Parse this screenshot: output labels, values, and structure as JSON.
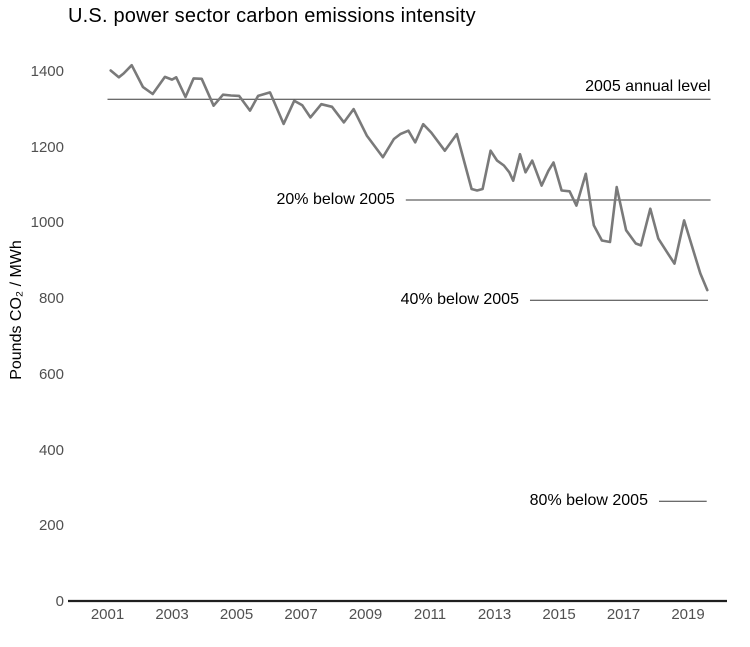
{
  "colors": {
    "background": "#ffffff",
    "text": "#000000",
    "tick_label": "#505050",
    "axis_line": "#1f1f1f",
    "reference_line": "#3a3a3a",
    "data_line": "#7a7a7a"
  },
  "chart_data": {
    "type": "line",
    "title": "U.S. power sector carbon emissions intensity",
    "xlabel": "",
    "ylabel": "Pounds CO₂ / MWh",
    "x_axis": {
      "ticks": [
        2001,
        2003,
        2005,
        2007,
        2009,
        2011,
        2013,
        2015,
        2017,
        2019
      ],
      "range": [
        1999.8,
        2020.2
      ]
    },
    "y_axis": {
      "ticks": [
        0,
        200,
        400,
        600,
        800,
        1000,
        1200,
        1400
      ],
      "range": [
        0,
        1450
      ]
    },
    "grid": false,
    "legend": "none",
    "reference_lines": [
      {
        "name": "2005-annual-level",
        "label": "2005 annual level",
        "value": 1328,
        "x_start": 2001.0,
        "x_end": 2019.7,
        "label_position": "above-right"
      },
      {
        "name": "20pct-below-2005",
        "label": "20% below 2005",
        "value": 1062,
        "x_start": 2010.25,
        "x_end": 2019.7,
        "label_position": "left"
      },
      {
        "name": "40pct-below-2005",
        "label": "40% below 2005",
        "value": 797,
        "x_start": 2014.1,
        "x_end": 2019.62,
        "label_position": "left"
      },
      {
        "name": "80pct-below-2005",
        "label": "80% below 2005",
        "value": 266,
        "x_start": 2018.1,
        "x_end": 2019.58,
        "label_position": "left"
      }
    ],
    "series": [
      {
        "name": "U.S. power sector carbon emissions intensity",
        "unit": "pounds CO₂ per MWh",
        "points": [
          [
            2001.1,
            1404
          ],
          [
            2001.35,
            1386
          ],
          [
            2001.5,
            1396
          ],
          [
            2001.75,
            1418
          ],
          [
            2002.1,
            1360
          ],
          [
            2002.4,
            1342
          ],
          [
            2002.78,
            1387
          ],
          [
            2003.0,
            1380
          ],
          [
            2003.13,
            1386
          ],
          [
            2003.42,
            1334
          ],
          [
            2003.67,
            1383
          ],
          [
            2003.92,
            1382
          ],
          [
            2004.29,
            1311
          ],
          [
            2004.58,
            1340
          ],
          [
            2004.83,
            1338
          ],
          [
            2005.08,
            1337
          ],
          [
            2005.42,
            1298
          ],
          [
            2005.67,
            1337
          ],
          [
            2006.04,
            1346
          ],
          [
            2006.46,
            1263
          ],
          [
            2006.79,
            1324
          ],
          [
            2007.04,
            1312
          ],
          [
            2007.29,
            1280
          ],
          [
            2007.63,
            1315
          ],
          [
            2007.96,
            1308
          ],
          [
            2008.33,
            1267
          ],
          [
            2008.63,
            1302
          ],
          [
            2009.04,
            1232
          ],
          [
            2009.54,
            1175
          ],
          [
            2009.88,
            1223
          ],
          [
            2010.08,
            1236
          ],
          [
            2010.33,
            1245
          ],
          [
            2010.54,
            1214
          ],
          [
            2010.79,
            1262
          ],
          [
            2011.04,
            1240
          ],
          [
            2011.46,
            1192
          ],
          [
            2011.83,
            1236
          ],
          [
            2012.29,
            1091
          ],
          [
            2012.46,
            1087
          ],
          [
            2012.63,
            1091
          ],
          [
            2012.88,
            1192
          ],
          [
            2013.08,
            1166
          ],
          [
            2013.29,
            1153
          ],
          [
            2013.46,
            1135
          ],
          [
            2013.58,
            1113
          ],
          [
            2013.79,
            1183
          ],
          [
            2013.96,
            1135
          ],
          [
            2014.17,
            1166
          ],
          [
            2014.46,
            1100
          ],
          [
            2014.67,
            1139
          ],
          [
            2014.83,
            1161
          ],
          [
            2015.08,
            1087
          ],
          [
            2015.33,
            1085
          ],
          [
            2015.54,
            1047
          ],
          [
            2015.83,
            1131
          ],
          [
            2016.08,
            995
          ],
          [
            2016.33,
            955
          ],
          [
            2016.58,
            951
          ],
          [
            2016.79,
            1096
          ],
          [
            2017.08,
            982
          ],
          [
            2017.38,
            947
          ],
          [
            2017.54,
            942
          ],
          [
            2017.83,
            1039
          ],
          [
            2018.08,
            960
          ],
          [
            2018.38,
            920
          ],
          [
            2018.58,
            894
          ],
          [
            2018.88,
            1008
          ],
          [
            2019.13,
            938
          ],
          [
            2019.38,
            868
          ],
          [
            2019.6,
            824
          ]
        ]
      }
    ]
  }
}
